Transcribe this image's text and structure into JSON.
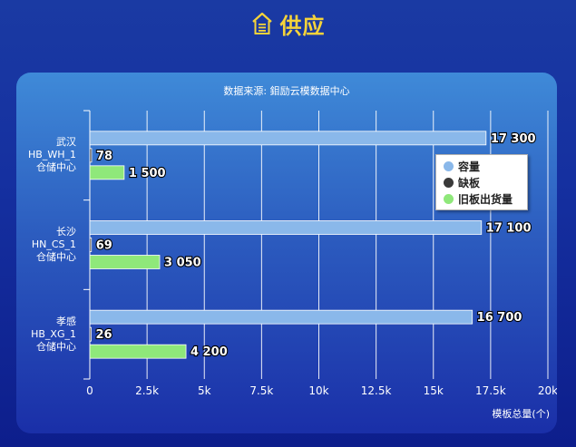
{
  "header": {
    "title": "供应",
    "icon": "warehouse-icon",
    "title_color": "#f5d33a"
  },
  "chart_data": {
    "type": "bar",
    "orientation": "horizontal",
    "title": "",
    "subtitle": "数据来源: 鉬励云模数据中心",
    "xlabel": "模板总量(个)",
    "ylabel": "",
    "xlim": [
      0,
      20000
    ],
    "x_ticks": [
      "0",
      "2.5k",
      "5k",
      "7.5k",
      "10k",
      "12.5k",
      "15k",
      "17.5k",
      "20k"
    ],
    "grid": true,
    "legend_position": "right",
    "categories": [
      [
        "武汉",
        "HB_WH_1",
        "仓储中心"
      ],
      [
        "长沙",
        "HN_CS_1",
        "仓储中心"
      ],
      [
        "孝感",
        "HB_XG_1",
        "仓储中心"
      ]
    ],
    "series": [
      {
        "name": "容量",
        "color": "#8ab8ea",
        "values": [
          17300,
          17100,
          16700
        ],
        "labels": [
          "17 300",
          "17 100",
          "16 700"
        ]
      },
      {
        "name": "缺板",
        "color": "#3a3a3a",
        "values": [
          78,
          69,
          26
        ],
        "labels": [
          "78",
          "69",
          "26"
        ]
      },
      {
        "name": "旧板出货量",
        "color": "#8fe87a",
        "values": [
          1500,
          3050,
          4200
        ],
        "labels": [
          "1 500",
          "3 050",
          "4 200"
        ]
      }
    ]
  }
}
